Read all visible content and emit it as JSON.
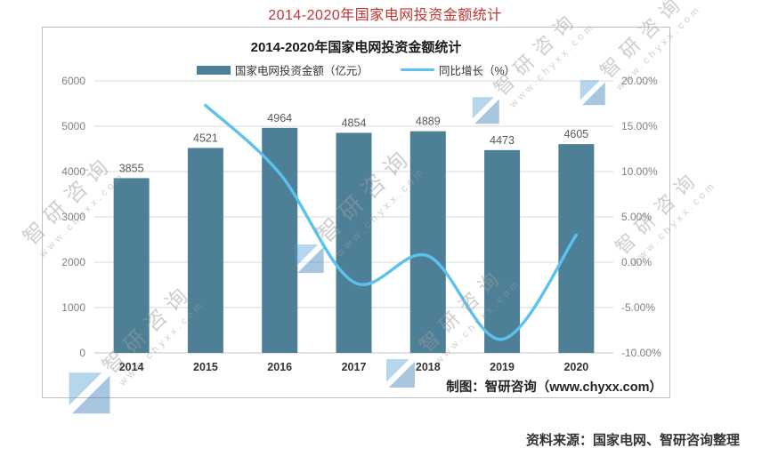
{
  "page": {
    "title": "2014-2020年国家电网投资金额统计",
    "source_note": "资料来源：国家电网、智研咨询整理"
  },
  "chart": {
    "title": "2014-2020年国家电网投资金额统计",
    "credit": "制图：智研咨询（www.chyxx.com）",
    "legend": [
      {
        "label": "国家电网投资金额（亿元）",
        "type": "bar",
        "color": "#4d7f96"
      },
      {
        "label": "同比增长（%）",
        "type": "line",
        "color": "#5bc2ee"
      }
    ]
  },
  "watermark": {
    "cn": "智研咨询",
    "url": "www.chyxx.com",
    "logo_color": "#2a72b5"
  },
  "colors": {
    "bar": "#4d7f96",
    "line": "#5bc2ee",
    "grid": "#d9d9d9",
    "axis_line": "#c6c6c6",
    "tick_text": "#808080",
    "value_label": "#595959",
    "category_label": "#333333",
    "page_title": "#c13531"
  },
  "chart_data": {
    "type": "bar",
    "title": "2014-2020年国家电网投资金额统计",
    "categories": [
      "2014",
      "2015",
      "2016",
      "2017",
      "2018",
      "2019",
      "2020"
    ],
    "series": [
      {
        "name": "国家电网投资金额（亿元）",
        "type": "bar",
        "axis": "left",
        "color": "#4d7f96",
        "values": [
          3855,
          4521,
          4964,
          4854,
          4889,
          4473,
          4605
        ]
      },
      {
        "name": "同比增长（%）",
        "type": "line",
        "axis": "right",
        "color": "#5bc2ee",
        "values": [
          null,
          17.3,
          9.8,
          -2.2,
          0.7,
          -8.5,
          3.0
        ]
      }
    ],
    "left_axis": {
      "min": 0,
      "max": 6000,
      "step": 1000,
      "ticks": [
        "0",
        "1000",
        "2000",
        "3000",
        "4000",
        "5000",
        "6000"
      ]
    },
    "right_axis": {
      "min": -10,
      "max": 20,
      "step": 5,
      "ticks": [
        "-10.00%",
        "-5.00%",
        "0.00%",
        "5.00%",
        "10.00%",
        "15.00%",
        "20.00%"
      ]
    },
    "grid": true,
    "legend_position": "top",
    "credit": "制图：智研咨询（www.chyxx.com）"
  }
}
